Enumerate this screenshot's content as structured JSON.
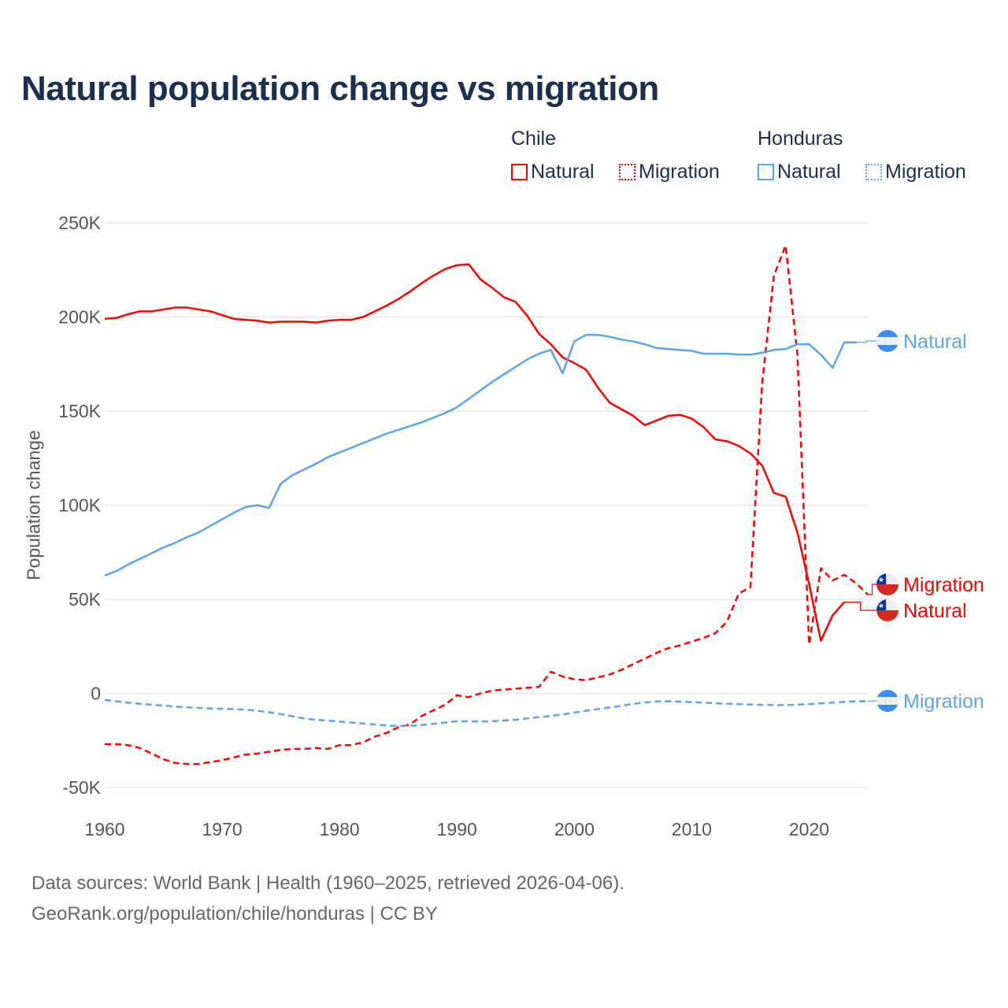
{
  "chart_data": {
    "type": "line",
    "title": "Natural population change vs migration",
    "ylabel": "Population change",
    "xlabel": "",
    "xlim": [
      1960,
      2025
    ],
    "ylim": [
      -50000,
      250000
    ],
    "x_ticks": [
      "1960",
      "1970",
      "1980",
      "1990",
      "2000",
      "2010",
      "2020"
    ],
    "y_ticks": [
      {
        "v": -50000,
        "label": "-50K"
      },
      {
        "v": 0,
        "label": "0"
      },
      {
        "v": 50000,
        "label": "50K"
      },
      {
        "v": 100000,
        "label": "100K"
      },
      {
        "v": 150000,
        "label": "150K"
      },
      {
        "v": 200000,
        "label": "200K"
      },
      {
        "v": 250000,
        "label": "250K"
      }
    ],
    "grid": true,
    "legend": {
      "placement": "top-right",
      "groups": [
        {
          "title": "Chile",
          "items": [
            {
              "label": "Natural",
              "style": "solid",
              "color": "#ff0000"
            },
            {
              "label": "Migration",
              "style": "dashed",
              "color": "#ff0000"
            }
          ]
        },
        {
          "title": "Honduras",
          "items": [
            {
              "label": "Natural",
              "style": "solid",
              "color": "#5ba4e8"
            },
            {
              "label": "Migration",
              "style": "dashed",
              "color": "#5ba4e8"
            }
          ]
        }
      ]
    },
    "series": [
      {
        "name": "Chile Natural",
        "country": "Chile",
        "end_label": "Natural",
        "color": "#ff0000",
        "dash": false,
        "start": 1960,
        "values": [
          199000,
          199500,
          201500,
          203000,
          203000,
          204000,
          205000,
          205000,
          204000,
          203000,
          201000,
          199000,
          198500,
          198000,
          197000,
          197500,
          197500,
          197500,
          197000,
          198000,
          198500,
          198500,
          200000,
          203000,
          206000,
          209500,
          213500,
          218000,
          222000,
          225500,
          227500,
          228000,
          220000,
          215500,
          210500,
          208000,
          200500,
          191000,
          185500,
          178500,
          175500,
          172000,
          162500,
          154500,
          151000,
          147500,
          142500,
          145000,
          147500,
          148000,
          146000,
          141500,
          135000,
          134000,
          131500,
          127500,
          121000,
          106500,
          104500,
          85500,
          58000,
          28000,
          41500,
          48500
        ]
      },
      {
        "name": "Chile Migration",
        "country": "Chile",
        "end_label": "Migration",
        "color": "#ff0000",
        "dash": true,
        "start": 1960,
        "values": [
          -27000,
          -27000,
          -27500,
          -29000,
          -32000,
          -35000,
          -37000,
          -37500,
          -37500,
          -36500,
          -35500,
          -34000,
          -32500,
          -32000,
          -31000,
          -30000,
          -29500,
          -29500,
          -29000,
          -29500,
          -27500,
          -27500,
          -26000,
          -23000,
          -21000,
          -18000,
          -16500,
          -12000,
          -9000,
          -6000,
          -1000,
          -2000,
          0,
          1500,
          2000,
          2500,
          3000,
          3500,
          11500,
          9000,
          7500,
          7000,
          8500,
          10000,
          12500,
          15500,
          18500,
          21500,
          24000,
          25500,
          27500,
          29500,
          32000,
          38000,
          53000,
          56500,
          165000,
          222000,
          238000,
          180000,
          26000,
          66500,
          60000,
          63000,
          58500,
          52500
        ]
      },
      {
        "name": "Honduras Natural",
        "country": "Honduras",
        "end_label": "Natural",
        "color": "#5ba4e8",
        "dash": false,
        "start": 1960,
        "values": [
          62700,
          65000,
          68500,
          71500,
          74500,
          77500,
          80000,
          83000,
          85500,
          89000,
          92500,
          96000,
          99000,
          100000,
          98500,
          111500,
          116000,
          119000,
          122000,
          125500,
          128000,
          130500,
          133000,
          135500,
          138000,
          140000,
          142000,
          144000,
          146500,
          149000,
          152000,
          156500,
          161000,
          165500,
          169500,
          173500,
          177500,
          180500,
          182500,
          170000,
          187000,
          190500,
          190500,
          189500,
          188000,
          187000,
          185500,
          183500,
          183000,
          182500,
          182000,
          180500,
          180500,
          180500,
          180000,
          180000,
          181000,
          182500,
          183000,
          185500,
          185500,
          180000,
          173000,
          186500,
          186500
        ]
      },
      {
        "name": "Honduras Migration",
        "country": "Honduras",
        "end_label": "Migration",
        "color": "#5ba4e8",
        "dash": true,
        "start": 1960,
        "values": [
          -3500,
          -4200,
          -4900,
          -5500,
          -6000,
          -6500,
          -7000,
          -7400,
          -7700,
          -8000,
          -8200,
          -8400,
          -8700,
          -9200,
          -10000,
          -11000,
          -12200,
          -13300,
          -14000,
          -14500,
          -15000,
          -15500,
          -16000,
          -16500,
          -17000,
          -17300,
          -17200,
          -16800,
          -16200,
          -15500,
          -14800,
          -14800,
          -15000,
          -14800,
          -14400,
          -14000,
          -13300,
          -12600,
          -12000,
          -11200,
          -10200,
          -9200,
          -8300,
          -7500,
          -6600,
          -5600,
          -4800,
          -4300,
          -4200,
          -4400,
          -4600,
          -4900,
          -5200,
          -5500,
          -5700,
          -5900,
          -6100,
          -6200,
          -6200,
          -6000,
          -5700,
          -5300,
          -4900,
          -4500,
          -4200,
          -4100
        ]
      }
    ]
  },
  "footer": {
    "sources": "Data sources: World Bank | Health (1960–2025, retrieved 2026-04-06).",
    "credit": "GeoRank.org/population/chile/honduras | CC BY"
  }
}
